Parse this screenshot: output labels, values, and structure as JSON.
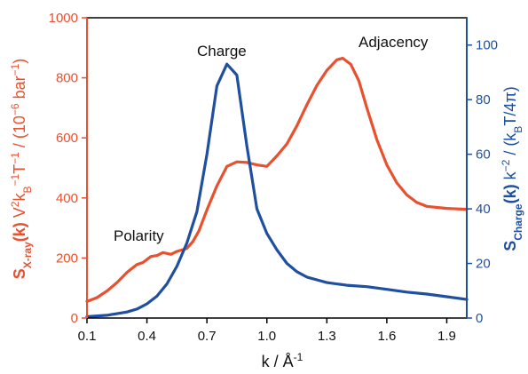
{
  "chart_data": {
    "type": "line",
    "colors": {
      "left": "#e8502e",
      "right": "#1f4fa0",
      "frame": "#000000"
    },
    "x": {
      "label_prefix": "k / Å",
      "label_sup": "-1",
      "lim": [
        0.1,
        2.0
      ],
      "ticks": [
        "0.1",
        "0.4",
        "0.7",
        "1.0",
        "1.3",
        "1.6",
        "1.9"
      ]
    },
    "y_left": {
      "lim": [
        0,
        1000
      ],
      "ticks": [
        "0",
        "200",
        "400",
        "600",
        "800",
        "1000"
      ],
      "label": {
        "p1": "S",
        "p1sub": "X-ray",
        "p2": "(k)",
        "p3": " V",
        "p3sup": "2",
        "p4": "k",
        "p4sub": "B",
        "p5sup": "−1",
        "p6": "T",
        "p6sup": "−1",
        "p7": " / (10",
        "p7sup": "−6",
        "p8": " bar",
        "p8sup": "−1",
        "p9": ")"
      }
    },
    "y_right": {
      "lim": [
        0,
        110
      ],
      "ticks": [
        "0",
        "20",
        "40",
        "60",
        "80",
        "100"
      ],
      "label": {
        "p1": "S",
        "p1sub": "Charge",
        "p2": "(k)",
        "p3": " k",
        "p3sup": "−2",
        "p4": " / (k",
        "p4sub": "B",
        "p5": "T/4π)"
      }
    },
    "annotations": [
      "Polarity",
      "Charge",
      "Adjacency"
    ],
    "series": [
      {
        "axis": "left",
        "color": "#e8502e",
        "x": [
          0.1,
          0.15,
          0.2,
          0.25,
          0.3,
          0.35,
          0.38,
          0.42,
          0.45,
          0.48,
          0.52,
          0.55,
          0.6,
          0.63,
          0.66,
          0.7,
          0.75,
          0.8,
          0.85,
          0.9,
          0.95,
          1.0,
          1.05,
          1.1,
          1.15,
          1.2,
          1.25,
          1.3,
          1.35,
          1.38,
          1.42,
          1.46,
          1.5,
          1.55,
          1.6,
          1.65,
          1.7,
          1.75,
          1.8,
          1.9,
          2.0
        ],
        "y": [
          55,
          68,
          90,
          118,
          152,
          178,
          185,
          205,
          208,
          218,
          212,
          222,
          232,
          255,
          290,
          360,
          440,
          505,
          520,
          518,
          510,
          505,
          540,
          580,
          640,
          710,
          775,
          825,
          860,
          865,
          845,
          790,
          700,
          595,
          510,
          450,
          410,
          385,
          372,
          365,
          362
        ]
      },
      {
        "axis": "right",
        "color": "#1f4fa0",
        "x": [
          0.1,
          0.2,
          0.3,
          0.35,
          0.4,
          0.45,
          0.5,
          0.55,
          0.6,
          0.65,
          0.7,
          0.75,
          0.8,
          0.85,
          0.9,
          0.95,
          1.0,
          1.05,
          1.1,
          1.15,
          1.2,
          1.25,
          1.3,
          1.4,
          1.5,
          1.6,
          1.7,
          1.8,
          1.9,
          2.0
        ],
        "y": [
          0.5,
          1,
          2.2,
          3.3,
          5.2,
          8,
          12.5,
          19,
          27.5,
          39,
          60,
          85,
          93,
          89,
          63,
          40,
          31,
          25,
          20,
          17,
          15,
          14,
          13,
          12,
          11.5,
          10.5,
          9.5,
          8.8,
          7.8,
          6.8
        ]
      }
    ]
  }
}
